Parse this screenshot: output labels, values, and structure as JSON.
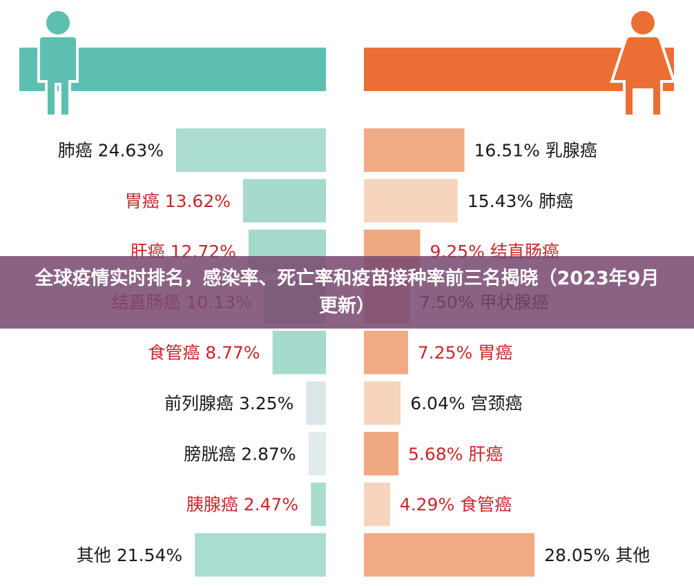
{
  "overlay_title": "全球疫情实时排名，感染率、死亡率和疫苗接种率前三名揭晓（2023年9月更新）",
  "colors": {
    "male_dark": "#5dbfb2",
    "male_bars": [
      "#aadccf",
      "#a6dacd",
      "#a4d9cc",
      "#a2d8cb",
      "#a6dacd",
      "#dbe7e8",
      "#e3ecec",
      "#a9dccf",
      "#aadccf"
    ],
    "female_dark": "#eb6f35",
    "female_bars": [
      "#f1ab84",
      "#f6d4bd",
      "#f0a880",
      "#f2b38f",
      "#f1ab84",
      "#f6d4bd",
      "#f0a880",
      "#f6d4bd",
      "#f1ab84"
    ],
    "label_black": "#1a1a1a",
    "label_red": "#c8262b",
    "overlay_bg": "rgba(120,72,112,0.86)"
  },
  "chart_data": {
    "type": "bar",
    "title": "",
    "male": {
      "categories": [
        "肺癌",
        "胃癌",
        "肝癌",
        "结直肠癌",
        "食管癌",
        "前列腺癌",
        "膀胱癌",
        "胰腺癌",
        "其他"
      ],
      "values": [
        24.63,
        13.62,
        12.72,
        10.13,
        8.77,
        3.25,
        2.87,
        2.47,
        21.54
      ],
      "labels": [
        "24.63%",
        "13.62%",
        "12.72%",
        "10.13%",
        "8.77%",
        "3.25%",
        "2.87%",
        "2.47%",
        "21.54%"
      ],
      "highlight": [
        false,
        true,
        true,
        true,
        true,
        false,
        false,
        true,
        false
      ]
    },
    "female": {
      "categories": [
        "乳腺癌",
        "肺癌",
        "结直肠癌",
        "甲状腺癌",
        "胃癌",
        "宫颈癌",
        "肝癌",
        "食管癌",
        "其他"
      ],
      "values": [
        16.51,
        15.43,
        9.25,
        7.5,
        7.25,
        6.04,
        5.68,
        4.29,
        28.05
      ],
      "labels": [
        "16.51%",
        "15.43%",
        "9.25%",
        "7.50%",
        "7.25%",
        "6.04%",
        "5.68%",
        "4.29%",
        "28.05%"
      ],
      "highlight": [
        false,
        false,
        true,
        false,
        true,
        false,
        true,
        true,
        false
      ]
    }
  }
}
